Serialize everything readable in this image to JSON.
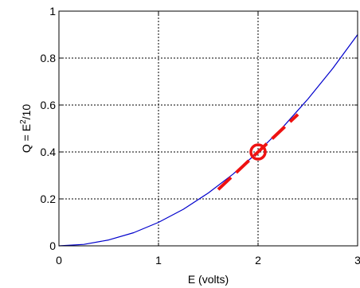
{
  "chart_data": {
    "type": "line",
    "title": "",
    "xlabel": "E (volts)",
    "ylabel": {
      "prefix": "Q = E",
      "superscript": "2",
      "suffix": "/10"
    },
    "xlim": [
      0,
      3
    ],
    "ylim": [
      0,
      1
    ],
    "x_ticks": [
      0,
      1,
      2,
      3
    ],
    "y_ticks": [
      0,
      0.2,
      0.4,
      0.6,
      0.8,
      1
    ],
    "x_tick_labels": [
      "0",
      "1",
      "2",
      "3"
    ],
    "y_tick_labels": [
      "0",
      "0.2",
      "0.4",
      "0.6",
      "0.8",
      "1"
    ],
    "grid": true,
    "series": [
      {
        "role": "curve",
        "color": "#0000cc",
        "style": "solid",
        "x": [
          0,
          0.25,
          0.5,
          0.75,
          1.0,
          1.25,
          1.5,
          1.75,
          2.0,
          2.25,
          2.5,
          2.75,
          3.0
        ],
        "y": [
          0,
          0.006,
          0.025,
          0.056,
          0.1,
          0.156,
          0.225,
          0.306,
          0.4,
          0.506,
          0.625,
          0.756,
          0.9
        ]
      },
      {
        "role": "tangent",
        "color": "#ee1111",
        "style": "dashed",
        "x": [
          1.6,
          2.4
        ],
        "y": [
          0.24,
          0.56
        ]
      }
    ],
    "markers": [
      {
        "shape": "circle",
        "color": "#ee1111",
        "x": 2,
        "y": 0.4
      }
    ]
  }
}
